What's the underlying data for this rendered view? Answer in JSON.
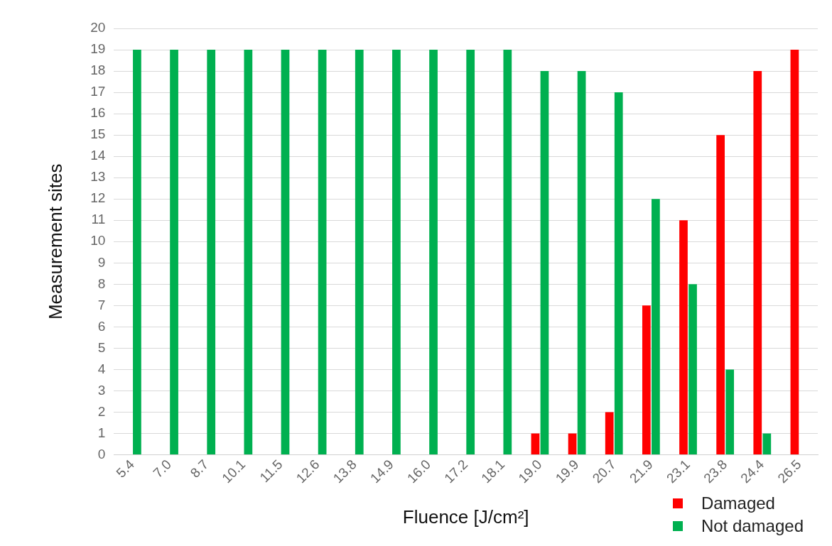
{
  "chart_data": {
    "type": "bar",
    "xlabel": "Fluence [J/cm²]",
    "ylabel": "Measurement sites",
    "categories": [
      "5.4",
      "7.0",
      "8.7",
      "10.1",
      "11.5",
      "12.6",
      "13.8",
      "14.9",
      "16.0",
      "17.2",
      "18.1",
      "19.0",
      "19.9",
      "20.7",
      "21.9",
      "23.1",
      "23.8",
      "24.4",
      "26.5"
    ],
    "series": [
      {
        "name": "Damaged",
        "color": "#ff0000",
        "values": [
          0,
          0,
          0,
          0,
          0,
          0,
          0,
          0,
          0,
          0,
          0,
          1,
          1,
          2,
          7,
          11,
          15,
          18,
          19
        ]
      },
      {
        "name": "Not damaged",
        "color": "#00b050",
        "values": [
          19,
          19,
          19,
          19,
          19,
          19,
          19,
          19,
          19,
          19,
          19,
          18,
          18,
          17,
          12,
          8,
          4,
          1,
          0
        ]
      }
    ],
    "ylim": [
      0,
      20
    ],
    "yticks": [
      0,
      1,
      2,
      3,
      4,
      5,
      6,
      7,
      8,
      9,
      10,
      11,
      12,
      13,
      14,
      15,
      16,
      17,
      18,
      19,
      20
    ],
    "grid": "y",
    "legend": "bottom right"
  }
}
